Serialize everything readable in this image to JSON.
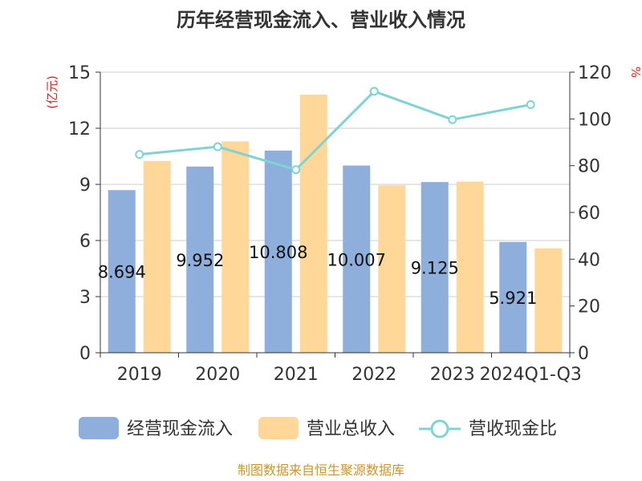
{
  "chart_data": {
    "type": "bar",
    "title": "历年经营现金流入、营业收入情况",
    "categories": [
      "2019",
      "2020",
      "2021",
      "2022",
      "2023",
      "2024Q1-Q3"
    ],
    "series": [
      {
        "name": "经营现金流入",
        "kind": "bar",
        "axis": "left",
        "color": "#8eaedc",
        "values": [
          8.694,
          9.952,
          10.808,
          10.007,
          9.125,
          5.921
        ],
        "data_labels": [
          "8.694",
          "9.952",
          "10.808",
          "10.007",
          "9.125",
          "5.921"
        ]
      },
      {
        "name": "营业总收入",
        "kind": "bar",
        "axis": "left",
        "color": "#ffd899",
        "values": [
          10.25,
          11.3,
          13.8,
          8.95,
          9.15,
          5.58
        ]
      },
      {
        "name": "营收现金比",
        "kind": "line",
        "axis": "right",
        "color": "#7fd3d3",
        "values": [
          84.8,
          88.1,
          78.3,
          111.8,
          99.7,
          106.1
        ]
      }
    ],
    "left_axis": {
      "label": "(亿元)",
      "ylim": [
        0,
        15
      ],
      "ticks": [
        "0",
        "3",
        "6",
        "9",
        "12",
        "15"
      ],
      "label_color": "#e02020"
    },
    "right_axis": {
      "label": "%",
      "ylim": [
        0,
        120
      ],
      "ticks": [
        "0",
        "20",
        "40",
        "60",
        "80",
        "100",
        "120"
      ],
      "label_color": "#e02020"
    },
    "grid": true,
    "legend_position": "bottom"
  },
  "source": {
    "text": "制图数据来自恒生聚源数据库",
    "color": "#c9962b"
  }
}
